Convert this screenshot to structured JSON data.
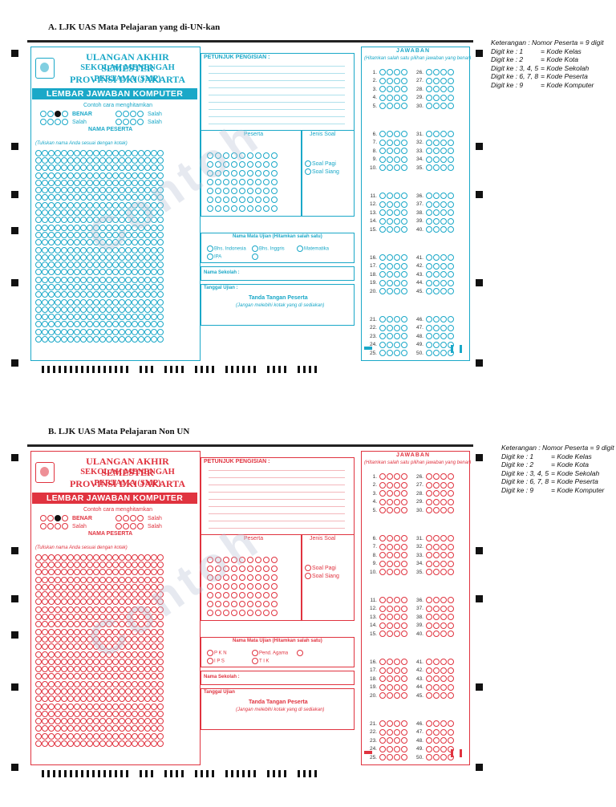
{
  "sheets": [
    {
      "title": "A. LJK UAS Mata Pelajaran yang di-UN-kan",
      "color": "#1aa8c8",
      "header": {
        "line1": "ULANGAN AKHIR SEMESTER",
        "line2": "SEKOLAH MENENGAH PERTAMA (SMP)",
        "line3": "PROVINSI DKI JAKARTA"
      },
      "banner": "LEMBAR JAWABAN KOMPUTER",
      "contoh": "Contoh cara menghitamkan",
      "benar": "BENAR",
      "salah": "Salah",
      "nama_peserta": "NAMA PESERTA",
      "tulis_nama": "(Tuliskan nama Anda sesuai dengan kotak)",
      "petunjuk": "PETUNJUK PENGISIAN :",
      "peserta": "Peserta",
      "jenis_soal": "Jenis Soal",
      "soal_pagi": "Soal Pagi",
      "soal_siang": "Soal Siang",
      "mapel_label": "Nama Mata Ujian (Hitamkan salah satu)",
      "mapel": [
        "Bhs. Indonesia",
        "Bhs. Inggris",
        "Matematika",
        "IPA",
        ""
      ],
      "sekolah": "Nama Sekolah :",
      "tanggal": "Tanggal Ujian :",
      "ttd": "Tanda Tangan Peserta",
      "ttd_sub": "(Jangan melebihi kotak yang di sediakan)",
      "jawaban": "JAWABAN",
      "jawaban_sub": "(Hitamkan salah satu pilihan jawaban yang benar)",
      "watermark": "Contoh"
    },
    {
      "title": "B. LJK UAS Mata Pelajaran Non UN",
      "color": "#e0333f",
      "header": {
        "line1": "ULANGAN AKHIR SEMESTER",
        "line2": "SEKOLAH MENENGAH PERTAMA (SMP)",
        "line3": "PROVINSI DKI JAKARTA"
      },
      "banner": "LEMBAR JAWABAN KOMPUTER",
      "contoh": "Contoh cara menghitamkan",
      "benar": "BENAR",
      "salah": "Salah",
      "nama_peserta": "NAMA PESERTA",
      "tulis_nama": "(Tuliskan nama Anda sesuai dengan kotak)",
      "petunjuk": "PETUNJUK PENGISIAN :",
      "peserta": "Peserta",
      "jenis_soal": "Jenis Soal",
      "soal_pagi": "Soal Pagi",
      "soal_siang": "Soal Siang",
      "mapel_label": "Nama Mata Ujian (Hitamkan salah satu)",
      "mapel": [
        "P K N",
        "Pend. Agama",
        "",
        "I P S",
        "T I K"
      ],
      "sekolah": "Nama Sekolah :",
      "tanggal": "Tanggal Ujian",
      "ttd": "Tanda Tangan Peserta",
      "ttd_sub": "(Jangan melebihi kotak yang di sediakan)",
      "jawaban": "JAWABAN",
      "jawaban_sub": "(Hitamkan salah satu pilihan jawaban yang benar)",
      "watermark": "Contoh"
    }
  ],
  "legend": {
    "title": "Keterangan : Nomor Peserta = 9 digit",
    "rows": [
      {
        "k": "Digit ke : 1",
        "v": "= Kode Kelas"
      },
      {
        "k": "Digit ke : 2",
        "v": "= Kode Kota"
      },
      {
        "k": "Digit ke : 3, 4, 5",
        "v": "= Kode Sekolah"
      },
      {
        "k": "Digit ke : 6, 7, 8",
        "v": "= Kode Peserta"
      },
      {
        "k": "Digit ke : 9",
        "v": "= Kode Komputer"
      }
    ]
  },
  "options": [
    "A",
    "B",
    "C",
    "D"
  ],
  "letters": "ABCDEFGHIJKLMNOPQRSTUVWXYZ",
  "digits": "0123456789",
  "question_count": 50
}
